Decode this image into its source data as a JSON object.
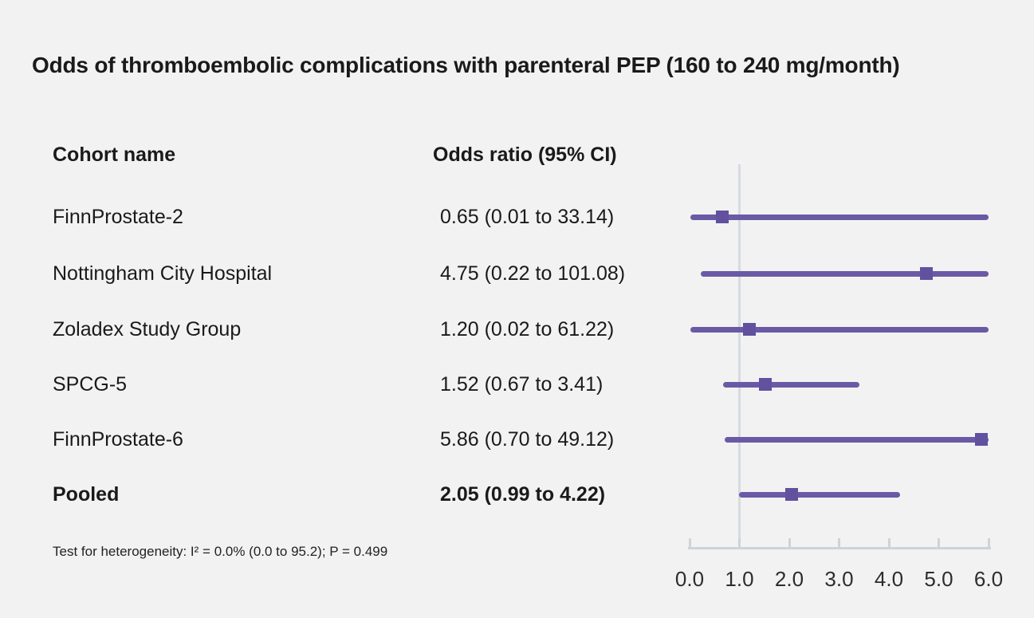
{
  "title": "Odds of thromboembolic complications with parenteral PEP (160 to 240 mg/month)",
  "columns": {
    "cohort": "Cohort name",
    "odds_ratio": "Odds ratio (95% CI)"
  },
  "footnote": "Test for heterogeneity: I² = 0.0% (0.0 to 95.2); P = 0.499",
  "colors": {
    "background": "#f2f2f2",
    "ci_line": "#6a5aa6",
    "marker": "#61519f",
    "reference_line": "#d6dae0",
    "axis": "#cdd3db",
    "text": "#1a1a1a"
  },
  "chart_data": {
    "type": "forest",
    "title": "Odds of thromboembolic complications with parenteral PEP (160 to 240 mg/month)",
    "xlim": [
      0.0,
      6.0
    ],
    "reference_line": 1.0,
    "axis_ticks": [
      0.0,
      1.0,
      2.0,
      3.0,
      4.0,
      5.0,
      6.0
    ],
    "axis_tick_labels": [
      "0.0",
      "1.0",
      "2.0",
      "3.0",
      "4.0",
      "5.0",
      "6.0"
    ],
    "legend": null,
    "grid": false,
    "rows": [
      {
        "label": "FinnProstate-2",
        "or": 0.65,
        "ci_low": 0.01,
        "ci_high": 33.14,
        "text": "0.65 (0.01 to 33.14)",
        "bold": false
      },
      {
        "label": "Nottingham City Hospital",
        "or": 4.75,
        "ci_low": 0.22,
        "ci_high": 101.08,
        "text": "4.75 (0.22 to 101.08)",
        "bold": false
      },
      {
        "label": "Zoladex Study Group",
        "or": 1.2,
        "ci_low": 0.02,
        "ci_high": 61.22,
        "text": "1.20 (0.02 to 61.22)",
        "bold": false
      },
      {
        "label": "SPCG-5",
        "or": 1.52,
        "ci_low": 0.67,
        "ci_high": 3.41,
        "text": "1.52 (0.67 to 3.41)",
        "bold": false
      },
      {
        "label": "FinnProstate-6",
        "or": 5.86,
        "ci_low": 0.7,
        "ci_high": 49.12,
        "text": "5.86 (0.70 to 49.12)",
        "bold": false
      },
      {
        "label": "Pooled",
        "or": 2.05,
        "ci_low": 0.99,
        "ci_high": 4.22,
        "text": "2.05 (0.99 to 4.22)",
        "bold": true
      }
    ]
  }
}
